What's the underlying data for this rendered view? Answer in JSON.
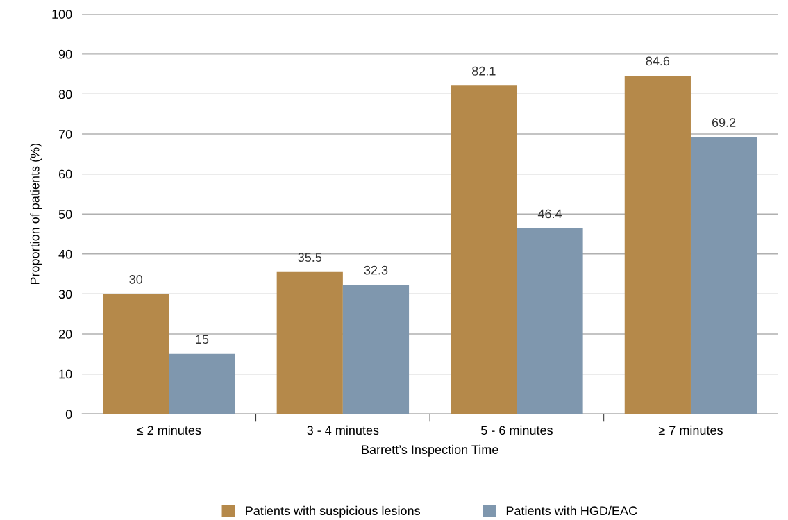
{
  "chart_data": {
    "type": "bar",
    "xlabel": "Barrett’s Inspection Time",
    "ylabel": "Proportion of patients (%)",
    "categories": [
      "≤ 2 minutes",
      "3 - 4 minutes",
      "5 - 6 minutes",
      "≥ 7 minutes"
    ],
    "series": [
      {
        "name": "Patients with suspicious lesions",
        "color": "#b5894a",
        "values": [
          30,
          35.5,
          82.1,
          84.6
        ]
      },
      {
        "name": "Patients with HGD/EAC",
        "color": "#7f97ae",
        "values": [
          15,
          32.3,
          46.4,
          69.2
        ]
      }
    ],
    "ylim": [
      0,
      100
    ],
    "yticks": [
      0,
      10,
      20,
      30,
      40,
      50,
      60,
      70,
      80,
      90,
      100
    ],
    "grid": "y",
    "legend": "bottom",
    "data_labels": true
  }
}
